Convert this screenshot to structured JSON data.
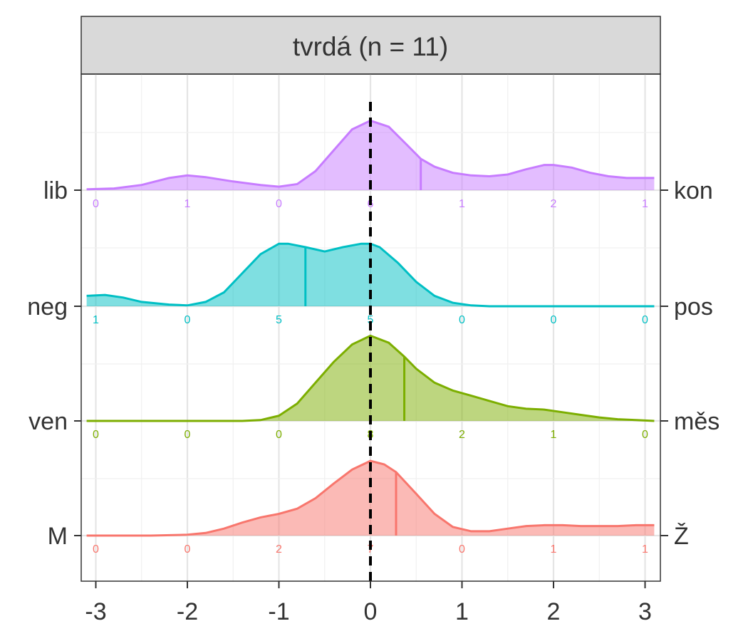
{
  "chart_data": {
    "type": "area",
    "title": "tvrdá (n = 11)",
    "xlabel": "",
    "ylabel": "",
    "xlim": [
      -3.1,
      3.1
    ],
    "x_ticks": [
      -3,
      -2,
      -1,
      0,
      1,
      2,
      3
    ],
    "x_tick_labels": [
      "-3",
      "-2",
      "-1",
      "0",
      "1",
      "2",
      "3"
    ],
    "grid": true,
    "reference_line": {
      "x": 0,
      "style": "dashed",
      "color": "#000000"
    },
    "rows": [
      {
        "left_label": "lib",
        "right_label": "kon",
        "color": "#C77CFF",
        "counts": [
          0,
          1,
          0,
          6,
          1,
          2,
          1
        ],
        "mean": 0.55,
        "density": [
          [
            -3.1,
            0.01
          ],
          [
            -2.8,
            0.02
          ],
          [
            -2.5,
            0.06
          ],
          [
            -2.2,
            0.14
          ],
          [
            -2.0,
            0.17
          ],
          [
            -1.8,
            0.15
          ],
          [
            -1.5,
            0.1
          ],
          [
            -1.2,
            0.06
          ],
          [
            -1.0,
            0.04
          ],
          [
            -0.8,
            0.07
          ],
          [
            -0.6,
            0.22
          ],
          [
            -0.4,
            0.46
          ],
          [
            -0.2,
            0.7
          ],
          [
            0.0,
            0.8
          ],
          [
            0.2,
            0.73
          ],
          [
            0.4,
            0.52
          ],
          [
            0.55,
            0.36
          ],
          [
            0.7,
            0.27
          ],
          [
            0.9,
            0.2
          ],
          [
            1.1,
            0.17
          ],
          [
            1.3,
            0.16
          ],
          [
            1.5,
            0.18
          ],
          [
            1.7,
            0.24
          ],
          [
            1.9,
            0.29
          ],
          [
            2.0,
            0.29
          ],
          [
            2.2,
            0.26
          ],
          [
            2.4,
            0.2
          ],
          [
            2.6,
            0.16
          ],
          [
            2.8,
            0.14
          ],
          [
            3.0,
            0.14
          ],
          [
            3.1,
            0.14
          ]
        ]
      },
      {
        "left_label": "neg",
        "right_label": "pos",
        "color": "#00BFC4",
        "counts": [
          1,
          0,
          5,
          5,
          0,
          0,
          0
        ],
        "mean": -0.71,
        "density": [
          [
            -3.1,
            0.12
          ],
          [
            -2.9,
            0.13
          ],
          [
            -2.7,
            0.1
          ],
          [
            -2.5,
            0.05
          ],
          [
            -2.2,
            0.02
          ],
          [
            -2.0,
            0.01
          ],
          [
            -1.8,
            0.05
          ],
          [
            -1.6,
            0.16
          ],
          [
            -1.4,
            0.38
          ],
          [
            -1.2,
            0.6
          ],
          [
            -1.0,
            0.72
          ],
          [
            -0.9,
            0.72
          ],
          [
            -0.71,
            0.68
          ],
          [
            -0.5,
            0.63
          ],
          [
            -0.3,
            0.68
          ],
          [
            -0.1,
            0.72
          ],
          [
            0.0,
            0.72
          ],
          [
            0.1,
            0.68
          ],
          [
            0.3,
            0.5
          ],
          [
            0.5,
            0.28
          ],
          [
            0.7,
            0.12
          ],
          [
            0.9,
            0.04
          ],
          [
            1.1,
            0.01
          ],
          [
            1.3,
            0.0
          ],
          [
            3.1,
            0.0
          ]
        ]
      },
      {
        "left_label": "ven",
        "right_label": "měs",
        "color": "#7CAE00",
        "counts": [
          0,
          0,
          0,
          8,
          2,
          1,
          0
        ],
        "mean": 0.37,
        "density": [
          [
            -3.1,
            0.0
          ],
          [
            -1.4,
            0.0
          ],
          [
            -1.2,
            0.01
          ],
          [
            -1.0,
            0.06
          ],
          [
            -0.8,
            0.2
          ],
          [
            -0.6,
            0.44
          ],
          [
            -0.4,
            0.68
          ],
          [
            -0.2,
            0.88
          ],
          [
            0.0,
            0.98
          ],
          [
            0.2,
            0.9
          ],
          [
            0.37,
            0.74
          ],
          [
            0.5,
            0.6
          ],
          [
            0.7,
            0.44
          ],
          [
            0.9,
            0.35
          ],
          [
            1.1,
            0.29
          ],
          [
            1.3,
            0.23
          ],
          [
            1.5,
            0.17
          ],
          [
            1.7,
            0.14
          ],
          [
            1.9,
            0.13
          ],
          [
            2.1,
            0.1
          ],
          [
            2.3,
            0.07
          ],
          [
            2.5,
            0.04
          ],
          [
            2.7,
            0.02
          ],
          [
            2.9,
            0.01
          ],
          [
            3.1,
            0.0
          ]
        ]
      },
      {
        "left_label": "M",
        "right_label": "Ž",
        "color": "#F8766D",
        "counts": [
          0,
          0,
          2,
          7,
          0,
          1,
          1
        ],
        "mean": 0.28,
        "density": [
          [
            -3.1,
            0.0
          ],
          [
            -2.4,
            0.0
          ],
          [
            -2.0,
            0.01
          ],
          [
            -1.8,
            0.03
          ],
          [
            -1.6,
            0.08
          ],
          [
            -1.4,
            0.15
          ],
          [
            -1.2,
            0.21
          ],
          [
            -1.0,
            0.25
          ],
          [
            -0.8,
            0.31
          ],
          [
            -0.6,
            0.43
          ],
          [
            -0.4,
            0.6
          ],
          [
            -0.2,
            0.76
          ],
          [
            0.0,
            0.86
          ],
          [
            0.15,
            0.82
          ],
          [
            0.28,
            0.73
          ],
          [
            0.5,
            0.48
          ],
          [
            0.7,
            0.25
          ],
          [
            0.9,
            0.1
          ],
          [
            1.1,
            0.05
          ],
          [
            1.3,
            0.05
          ],
          [
            1.5,
            0.08
          ],
          [
            1.7,
            0.11
          ],
          [
            1.9,
            0.12
          ],
          [
            2.1,
            0.12
          ],
          [
            2.3,
            0.11
          ],
          [
            2.5,
            0.11
          ],
          [
            2.7,
            0.11
          ],
          [
            2.9,
            0.12
          ],
          [
            3.1,
            0.12
          ]
        ]
      }
    ]
  }
}
